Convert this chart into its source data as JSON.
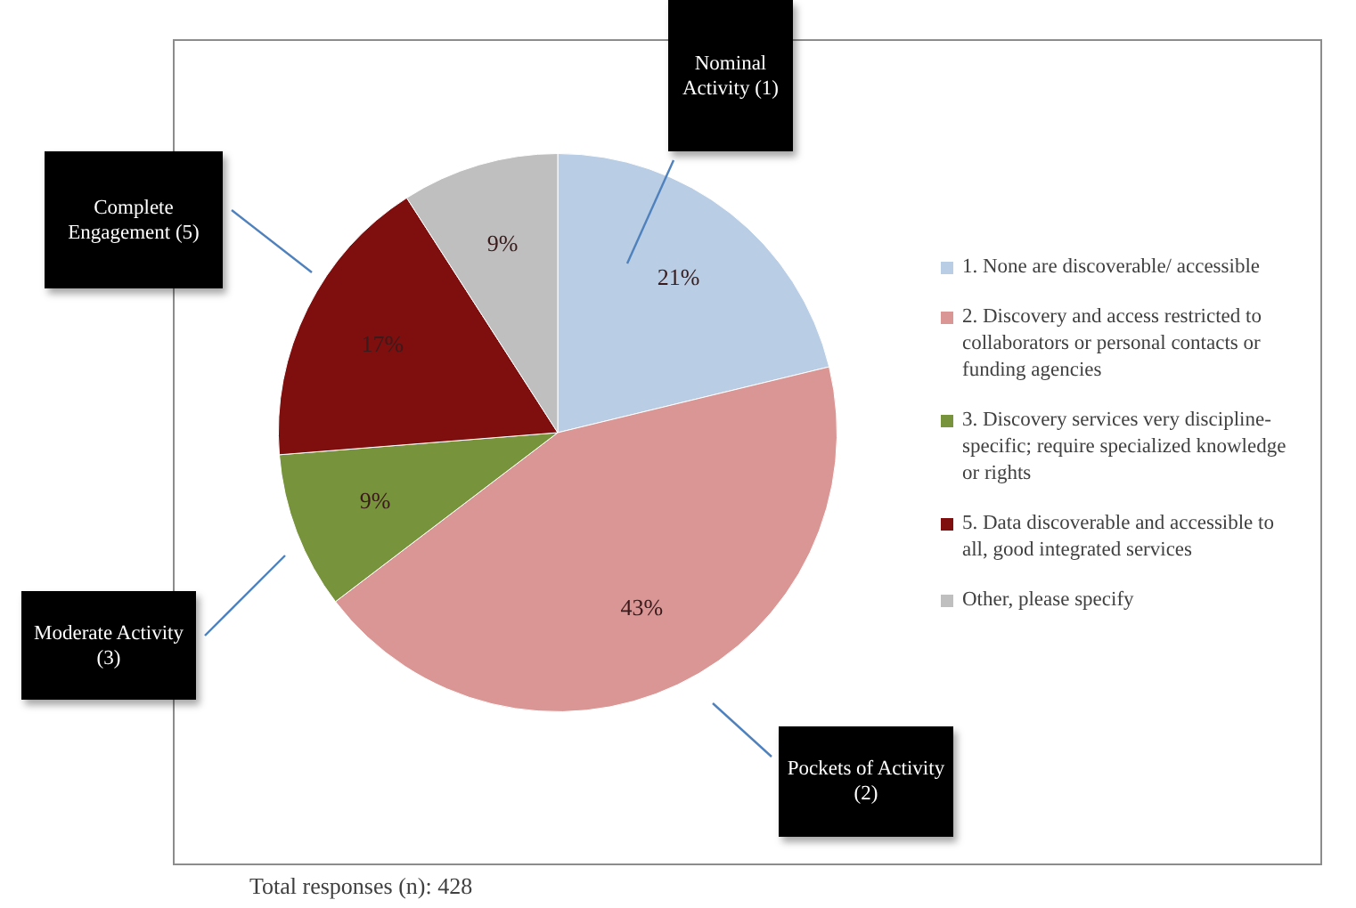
{
  "chart_data": {
    "type": "pie",
    "categories": [
      "1. None are discoverable/ accessible",
      "2. Discovery and access restricted to collaborators or personal contacts or funding agencies",
      "3. Discovery services very discipline-specific; require specialized knowledge or rights",
      "5. Data discoverable and accessible to all, good integrated services",
      "Other, please specify"
    ],
    "values": [
      21,
      43,
      9,
      17,
      9
    ],
    "colors": [
      "#b9cde5",
      "#d99694",
      "#77933c",
      "#7f0f0f",
      "#bfbfbf"
    ],
    "value_labels": [
      "21%",
      "43%",
      "9%",
      "17%",
      "9%"
    ],
    "legend": "right",
    "annotations": [
      "Nominal Activity (1)",
      "Complete Engagement (5)",
      "Moderate Activity (3)",
      "Pockets of Activity (2)",
      "Total responses (n): 428"
    ]
  }
}
